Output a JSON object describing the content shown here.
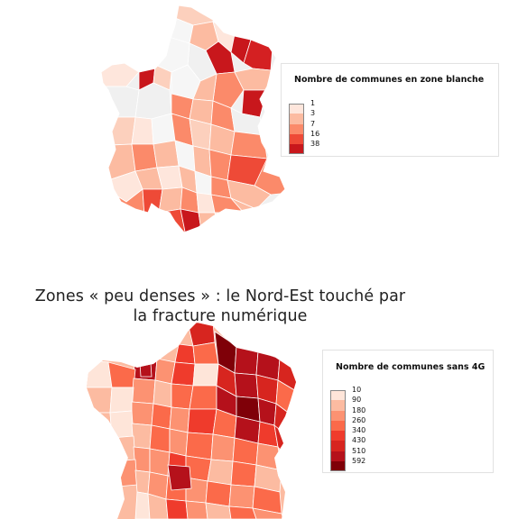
{
  "maps": [
    {
      "legend_title": "Nombre de communes en zone blanche",
      "legend": [
        {
          "label": "1",
          "color": "#fee6dc"
        },
        {
          "label": "3",
          "color": "#fcbba1"
        },
        {
          "label": "7",
          "color": "#fb8a6a"
        },
        {
          "label": "16",
          "color": "#ee4a37"
        },
        {
          "label": "38",
          "color": "#c8171c"
        }
      ]
    },
    {
      "title_line1": "Zones « peu denses » : le Nord-Est touché par",
      "title_line2": "la fracture numérique",
      "legend_title": "Nombre de communes sans 4G",
      "legend": [
        {
          "label": "10",
          "color": "#fee5d9"
        },
        {
          "label": "90",
          "color": "#fcbba1"
        },
        {
          "label": "180",
          "color": "#fc9272"
        },
        {
          "label": "260",
          "color": "#fb6a4a"
        },
        {
          "label": "340",
          "color": "#ef3b2c"
        },
        {
          "label": "430",
          "color": "#d7251f"
        },
        {
          "label": "510",
          "color": "#b5111b"
        },
        {
          "label": "592",
          "color": "#7f0008"
        }
      ]
    }
  ]
}
